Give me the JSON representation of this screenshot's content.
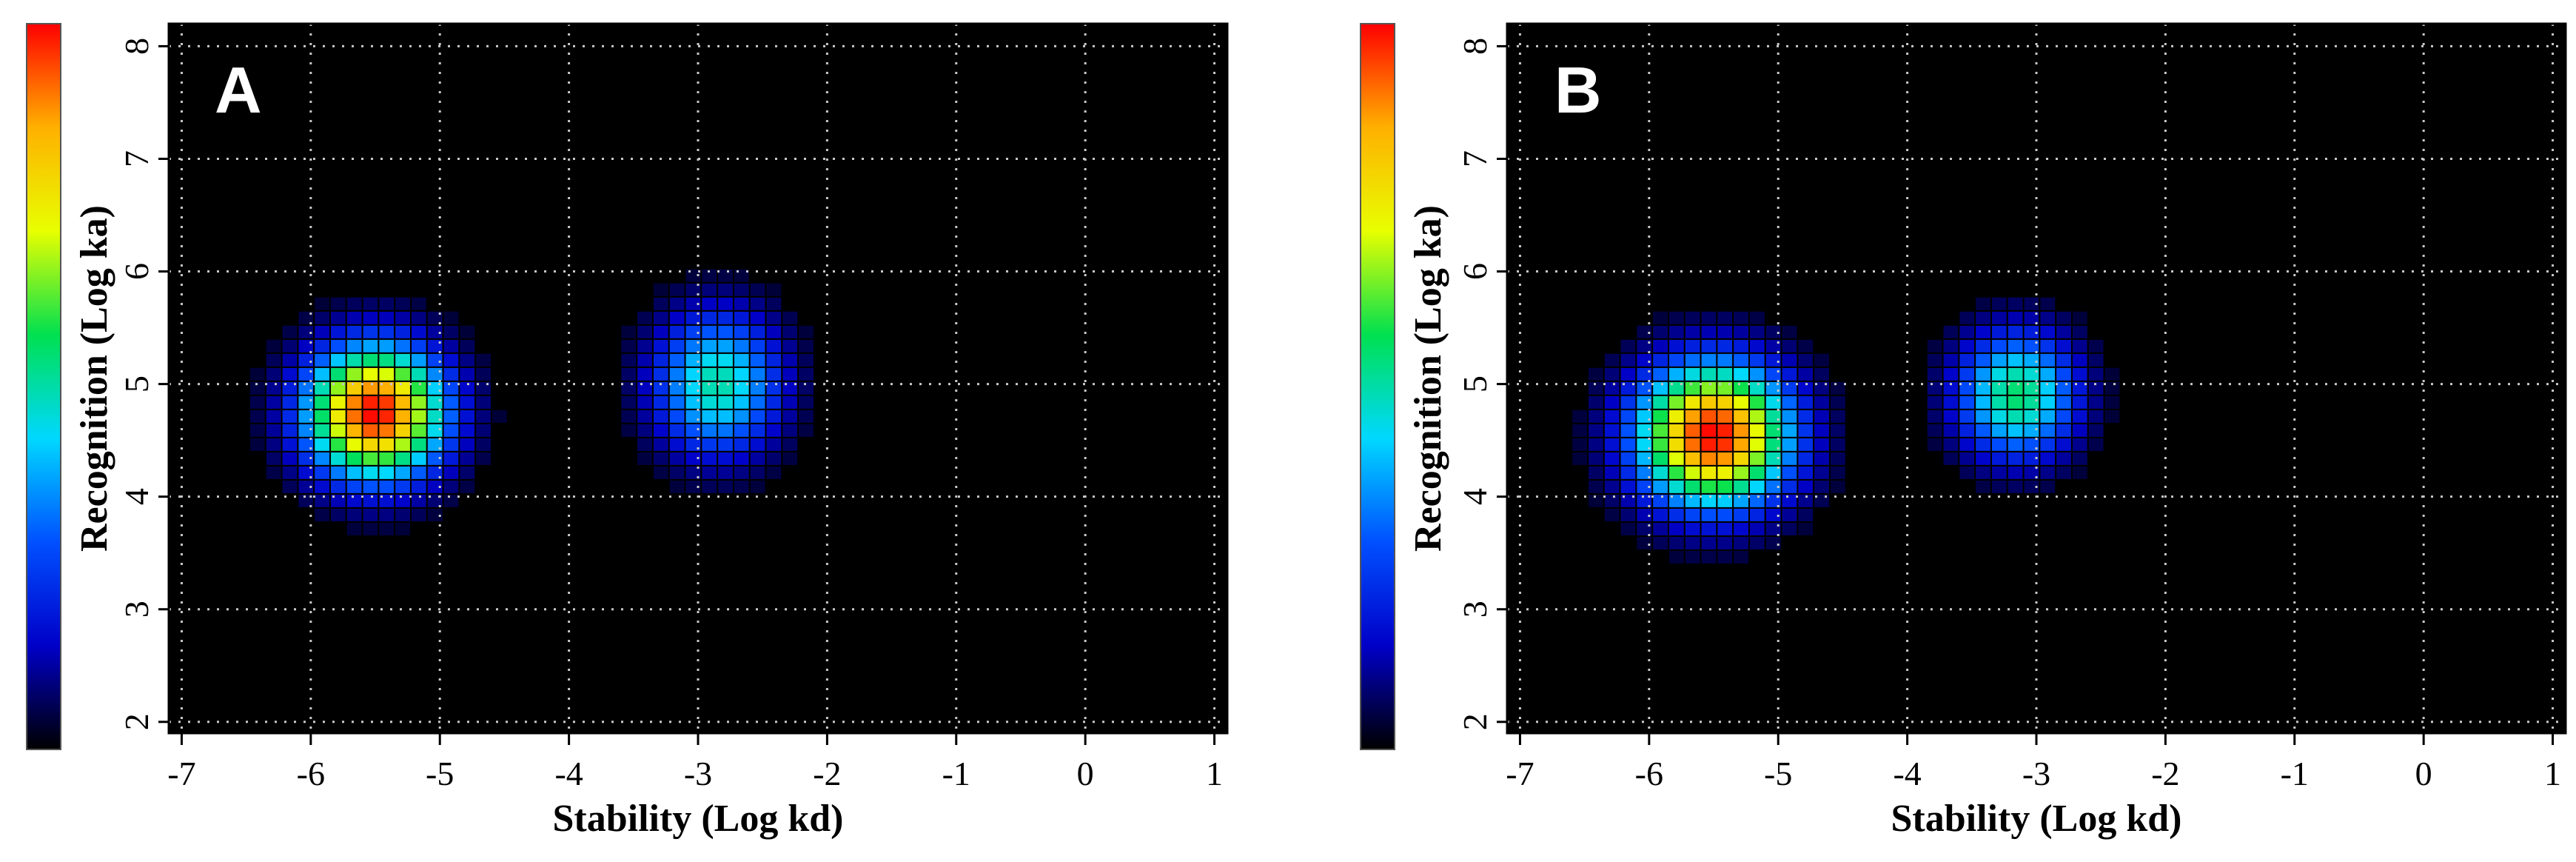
{
  "chart_data": [
    {
      "type": "heatmap",
      "panel_label": "A",
      "xlabel": "Stability (Log kd)",
      "ylabel": "Recognition (Log ka)",
      "xlim": [
        -7.1,
        1.1
      ],
      "ylim": [
        1.9,
        8.2
      ],
      "xticks": [
        -7,
        -6,
        -5,
        -4,
        -3,
        -2,
        -1,
        0,
        1
      ],
      "xtick_labels": [
        "-7",
        "-6",
        "-5",
        "-4",
        "-3",
        "-2",
        "-1",
        "0",
        "1"
      ],
      "yticks": [
        2,
        3,
        4,
        5,
        6,
        7,
        8
      ],
      "ytick_labels": [
        "2",
        "3",
        "4",
        "5",
        "6",
        "7",
        "8"
      ],
      "grid": true,
      "background": "#000000",
      "colorbar": {
        "position": "left",
        "colors": [
          "#000000",
          "#0000c8",
          "#0050ff",
          "#00d8ff",
          "#00e050",
          "#e8ff00",
          "#ffb000",
          "#ff0000"
        ]
      },
      "clusters": [
        {
          "center_x": -5.5,
          "center_y": 4.75,
          "peak": 1.0,
          "sigma_x": 0.38,
          "sigma_y": 0.42
        },
        {
          "center_x": -2.85,
          "center_y": 5.0,
          "peak": 0.5,
          "sigma_x": 0.35,
          "sigma_y": 0.45
        }
      ]
    },
    {
      "type": "heatmap",
      "panel_label": "B",
      "xlabel": "Stability (Log kd)",
      "ylabel": "Recognition (Log ka)",
      "xlim": [
        -7.1,
        1.1
      ],
      "ylim": [
        1.9,
        8.2
      ],
      "xticks": [
        -7,
        -6,
        -5,
        -4,
        -3,
        -2,
        -1,
        0,
        1
      ],
      "xtick_labels": [
        "-7",
        "-6",
        "-5",
        "-4",
        "-3",
        "-2",
        "-1",
        "0",
        "1"
      ],
      "yticks": [
        2,
        3,
        4,
        5,
        6,
        7,
        8
      ],
      "ytick_labels": [
        "2",
        "3",
        "4",
        "5",
        "6",
        "7",
        "8"
      ],
      "grid": true,
      "background": "#000000",
      "colorbar": {
        "position": "left",
        "colors": [
          "#000000",
          "#0000c8",
          "#0050ff",
          "#00d8ff",
          "#00e050",
          "#e8ff00",
          "#ffb000",
          "#ff0000"
        ]
      },
      "clusters": [
        {
          "center_x": -5.5,
          "center_y": 4.55,
          "peak": 1.0,
          "sigma_x": 0.42,
          "sigma_y": 0.45
        },
        {
          "center_x": -3.15,
          "center_y": 4.9,
          "peak": 0.55,
          "sigma_x": 0.33,
          "sigma_y": 0.4
        }
      ]
    }
  ]
}
